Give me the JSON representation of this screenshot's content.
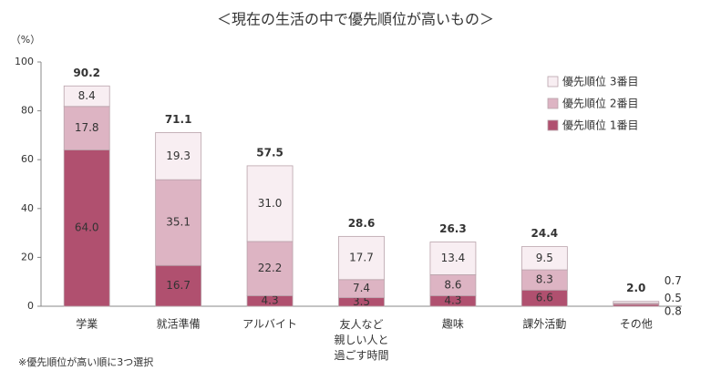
{
  "chart_data": {
    "type": "stacked-bar",
    "title": "＜現在の生活の中で優先順位が高いもの＞",
    "y_label": "（%）",
    "note": "※優先順位が高い順に3つ選択",
    "categories": [
      "学業",
      "就活準備",
      "アルバイト",
      "友人など\n親しい人と\n過ごす時間",
      "趣味",
      "課外活動",
      "その他"
    ],
    "series": [
      {
        "name": "優先順位 1番目",
        "color": "#b0506f",
        "values": [
          64.0,
          16.7,
          4.3,
          3.5,
          4.3,
          6.6,
          0.8
        ],
        "value_labels": [
          "64.0",
          "16.7",
          "4.3",
          "3.5",
          "4.3",
          "6.6",
          "0.8"
        ]
      },
      {
        "name": "優先順位 2番目",
        "color": "#ddb4c3",
        "values": [
          17.8,
          35.1,
          22.2,
          7.4,
          8.6,
          8.3,
          0.5
        ],
        "value_labels": [
          "17.8",
          "35.1",
          "22.2",
          "7.4",
          "8.6",
          "8.3",
          "0.5"
        ]
      },
      {
        "name": "優先順位 3番目",
        "color": "#f8eef2",
        "values": [
          8.4,
          19.3,
          31.0,
          17.7,
          13.4,
          9.5,
          0.7
        ],
        "value_labels": [
          "8.4",
          "19.3",
          "31.0",
          "17.7",
          "13.4",
          "9.5",
          "0.7"
        ]
      }
    ],
    "totals": [
      90.2,
      71.1,
      57.5,
      28.6,
      26.3,
      24.4,
      2.0
    ],
    "total_labels": [
      "90.2",
      "71.1",
      "57.5",
      "28.6",
      "26.3",
      "24.4",
      "2.0"
    ],
    "ylim": [
      0,
      100
    ],
    "yticks": [
      0,
      20,
      40,
      60,
      80,
      100
    ],
    "grid": false
  }
}
